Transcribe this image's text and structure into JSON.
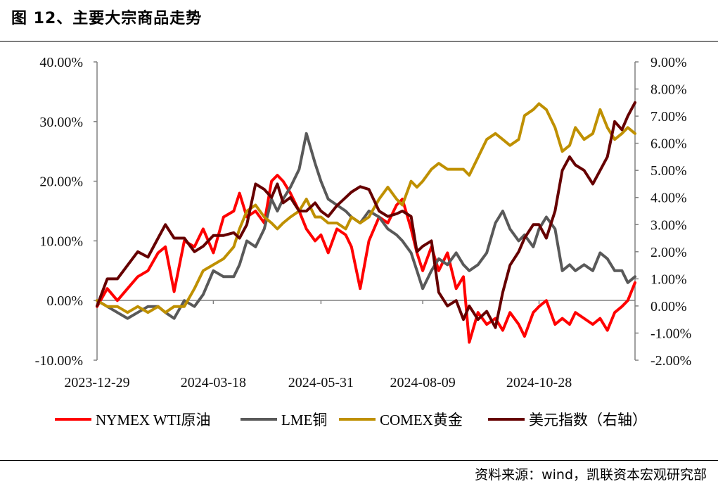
{
  "figure_title": "图 12、主要大宗商品走势",
  "source_note": "资料来源：wind，凯联资本宏观研究部",
  "chart_data": {
    "type": "line",
    "x_ticks": [
      "2023-12-29",
      "2024-03-18",
      "2024-05-31",
      "2024-08-09",
      "2024-10-28"
    ],
    "x_range": [
      "2023-12-29",
      "2025-01-02"
    ],
    "left_axis": {
      "ylim": [
        -10,
        40
      ],
      "tick_values": [
        -10,
        0,
        10,
        20,
        30,
        40
      ],
      "tick_labels": [
        "-10.00%",
        "0.00%",
        "10.00%",
        "20.00%",
        "30.00%",
        "40.00%"
      ]
    },
    "right_axis": {
      "ylim": [
        -2,
        9
      ],
      "tick_values": [
        -2,
        -1,
        0,
        1,
        2,
        3,
        4,
        5,
        6,
        7,
        8,
        9
      ],
      "tick_labels": [
        "-2.00%",
        "-1.00%",
        "0.00%",
        "1.00%",
        "2.00%",
        "3.00%",
        "4.00%",
        "5.00%",
        "6.00%",
        "7.00%",
        "8.00%",
        "9.00%"
      ]
    },
    "series": [
      {
        "name": "NYMEX WTI原油",
        "axis": "left",
        "color": "#ff0000",
        "points": [
          [
            "2023-12-29",
            -1
          ],
          [
            "2024-01-05",
            2
          ],
          [
            "2024-01-12",
            0
          ],
          [
            "2024-01-19",
            2
          ],
          [
            "2024-01-26",
            4
          ],
          [
            "2024-02-02",
            5
          ],
          [
            "2024-02-09",
            8
          ],
          [
            "2024-02-14",
            9
          ],
          [
            "2024-02-20",
            1.5
          ],
          [
            "2024-02-27",
            10
          ],
          [
            "2024-03-05",
            9
          ],
          [
            "2024-03-11",
            12
          ],
          [
            "2024-03-18",
            8
          ],
          [
            "2024-03-25",
            14
          ],
          [
            "2024-04-01",
            15
          ],
          [
            "2024-04-05",
            18
          ],
          [
            "2024-04-10",
            14
          ],
          [
            "2024-04-16",
            15
          ],
          [
            "2024-04-22",
            13
          ],
          [
            "2024-04-27",
            20
          ],
          [
            "2024-05-01",
            21
          ],
          [
            "2024-05-05",
            20
          ],
          [
            "2024-05-10",
            18
          ],
          [
            "2024-05-16",
            15
          ],
          [
            "2024-05-21",
            12
          ],
          [
            "2024-05-27",
            10
          ],
          [
            "2024-05-31",
            11
          ],
          [
            "2024-06-05",
            8
          ],
          [
            "2024-06-11",
            12
          ],
          [
            "2024-06-17",
            11
          ],
          [
            "2024-06-21",
            9
          ],
          [
            "2024-06-27",
            2
          ],
          [
            "2024-07-03",
            10
          ],
          [
            "2024-07-10",
            14
          ],
          [
            "2024-07-16",
            13
          ],
          [
            "2024-07-22",
            16
          ],
          [
            "2024-07-26",
            17
          ],
          [
            "2024-08-01",
            12
          ],
          [
            "2024-08-05",
            8
          ],
          [
            "2024-08-09",
            5
          ],
          [
            "2024-08-15",
            9
          ],
          [
            "2024-08-20",
            5
          ],
          [
            "2024-08-26",
            8
          ],
          [
            "2024-09-01",
            2
          ],
          [
            "2024-09-06",
            4
          ],
          [
            "2024-09-10",
            -7
          ],
          [
            "2024-09-16",
            -2
          ],
          [
            "2024-09-22",
            -4
          ],
          [
            "2024-09-28",
            -3
          ],
          [
            "2024-10-03",
            -5
          ],
          [
            "2024-10-08",
            -2
          ],
          [
            "2024-10-14",
            -4
          ],
          [
            "2024-10-18",
            -6
          ],
          [
            "2024-10-24",
            -2
          ],
          [
            "2024-10-28",
            -1
          ],
          [
            "2024-11-02",
            0
          ],
          [
            "2024-11-08",
            -4
          ],
          [
            "2024-11-13",
            -3
          ],
          [
            "2024-11-18",
            -4
          ],
          [
            "2024-11-22",
            -2
          ],
          [
            "2024-11-28",
            -3
          ],
          [
            "2024-12-04",
            -4
          ],
          [
            "2024-12-09",
            -3
          ],
          [
            "2024-12-14",
            -5
          ],
          [
            "2024-12-19",
            -2
          ],
          [
            "2024-12-24",
            -1
          ],
          [
            "2024-12-28",
            0
          ],
          [
            "2025-01-02",
            3
          ]
        ]
      },
      {
        "name": "LME铜",
        "axis": "left",
        "color": "#595959",
        "points": [
          [
            "2023-12-29",
            0
          ],
          [
            "2024-01-05",
            -1
          ],
          [
            "2024-01-12",
            -2
          ],
          [
            "2024-01-19",
            -3
          ],
          [
            "2024-01-26",
            -2
          ],
          [
            "2024-02-02",
            -1
          ],
          [
            "2024-02-09",
            -1
          ],
          [
            "2024-02-14",
            -2
          ],
          [
            "2024-02-20",
            -3
          ],
          [
            "2024-02-27",
            0
          ],
          [
            "2024-03-05",
            -1
          ],
          [
            "2024-03-11",
            1
          ],
          [
            "2024-03-18",
            5
          ],
          [
            "2024-03-25",
            4
          ],
          [
            "2024-04-01",
            4
          ],
          [
            "2024-04-05",
            6
          ],
          [
            "2024-04-10",
            10
          ],
          [
            "2024-04-16",
            9
          ],
          [
            "2024-04-22",
            12
          ],
          [
            "2024-04-27",
            17
          ],
          [
            "2024-05-01",
            15
          ],
          [
            "2024-05-05",
            17
          ],
          [
            "2024-05-10",
            19
          ],
          [
            "2024-05-16",
            22
          ],
          [
            "2024-05-21",
            28
          ],
          [
            "2024-05-27",
            23
          ],
          [
            "2024-05-31",
            20
          ],
          [
            "2024-06-05",
            17
          ],
          [
            "2024-06-11",
            16
          ],
          [
            "2024-06-17",
            15
          ],
          [
            "2024-06-21",
            14
          ],
          [
            "2024-06-27",
            13
          ],
          [
            "2024-07-03",
            15
          ],
          [
            "2024-07-10",
            14
          ],
          [
            "2024-07-16",
            12
          ],
          [
            "2024-07-22",
            11
          ],
          [
            "2024-07-26",
            10
          ],
          [
            "2024-08-01",
            8
          ],
          [
            "2024-08-05",
            5
          ],
          [
            "2024-08-09",
            2
          ],
          [
            "2024-08-15",
            5
          ],
          [
            "2024-08-20",
            7
          ],
          [
            "2024-08-26",
            6
          ],
          [
            "2024-09-01",
            8
          ],
          [
            "2024-09-06",
            6
          ],
          [
            "2024-09-10",
            5
          ],
          [
            "2024-09-16",
            6
          ],
          [
            "2024-09-22",
            8
          ],
          [
            "2024-09-28",
            13
          ],
          [
            "2024-10-03",
            15
          ],
          [
            "2024-10-08",
            12
          ],
          [
            "2024-10-14",
            10
          ],
          [
            "2024-10-18",
            11
          ],
          [
            "2024-10-24",
            9
          ],
          [
            "2024-10-28",
            12
          ],
          [
            "2024-11-02",
            14
          ],
          [
            "2024-11-08",
            12
          ],
          [
            "2024-11-13",
            5
          ],
          [
            "2024-11-18",
            6
          ],
          [
            "2024-11-22",
            5
          ],
          [
            "2024-11-28",
            6
          ],
          [
            "2024-12-04",
            5
          ],
          [
            "2024-12-09",
            8
          ],
          [
            "2024-12-14",
            7
          ],
          [
            "2024-12-19",
            5
          ],
          [
            "2024-12-24",
            5
          ],
          [
            "2024-12-28",
            3
          ],
          [
            "2025-01-02",
            4
          ]
        ]
      },
      {
        "name": "COMEX黄金",
        "axis": "left",
        "color": "#bf9000",
        "points": [
          [
            "2023-12-29",
            0
          ],
          [
            "2024-01-05",
            -1
          ],
          [
            "2024-01-12",
            -1
          ],
          [
            "2024-01-19",
            -2
          ],
          [
            "2024-01-26",
            -1
          ],
          [
            "2024-02-02",
            -2
          ],
          [
            "2024-02-09",
            -1
          ],
          [
            "2024-02-14",
            -2
          ],
          [
            "2024-02-20",
            -1
          ],
          [
            "2024-02-27",
            -1
          ],
          [
            "2024-03-05",
            2
          ],
          [
            "2024-03-11",
            5
          ],
          [
            "2024-03-18",
            6
          ],
          [
            "2024-03-25",
            7
          ],
          [
            "2024-04-01",
            9
          ],
          [
            "2024-04-05",
            12
          ],
          [
            "2024-04-10",
            15
          ],
          [
            "2024-04-16",
            16
          ],
          [
            "2024-04-22",
            14
          ],
          [
            "2024-04-27",
            13
          ],
          [
            "2024-05-01",
            12
          ],
          [
            "2024-05-05",
            13
          ],
          [
            "2024-05-10",
            14
          ],
          [
            "2024-05-16",
            15
          ],
          [
            "2024-05-21",
            17
          ],
          [
            "2024-05-27",
            14
          ],
          [
            "2024-05-31",
            14
          ],
          [
            "2024-06-05",
            13
          ],
          [
            "2024-06-11",
            13
          ],
          [
            "2024-06-17",
            12
          ],
          [
            "2024-06-21",
            14
          ],
          [
            "2024-06-27",
            13
          ],
          [
            "2024-07-03",
            14
          ],
          [
            "2024-07-10",
            17
          ],
          [
            "2024-07-16",
            19
          ],
          [
            "2024-07-22",
            17
          ],
          [
            "2024-07-26",
            16
          ],
          [
            "2024-08-01",
            20
          ],
          [
            "2024-08-05",
            19
          ],
          [
            "2024-08-09",
            20
          ],
          [
            "2024-08-15",
            22
          ],
          [
            "2024-08-20",
            23
          ],
          [
            "2024-08-26",
            22
          ],
          [
            "2024-09-01",
            22
          ],
          [
            "2024-09-06",
            22
          ],
          [
            "2024-09-10",
            21
          ],
          [
            "2024-09-16",
            24
          ],
          [
            "2024-09-22",
            27
          ],
          [
            "2024-09-28",
            28
          ],
          [
            "2024-10-03",
            27
          ],
          [
            "2024-10-08",
            26
          ],
          [
            "2024-10-14",
            27
          ],
          [
            "2024-10-18",
            31
          ],
          [
            "2024-10-24",
            32
          ],
          [
            "2024-10-28",
            33
          ],
          [
            "2024-11-02",
            32
          ],
          [
            "2024-11-08",
            29
          ],
          [
            "2024-11-13",
            25
          ],
          [
            "2024-11-18",
            26
          ],
          [
            "2024-11-22",
            29
          ],
          [
            "2024-11-28",
            27
          ],
          [
            "2024-12-04",
            28
          ],
          [
            "2024-12-09",
            32
          ],
          [
            "2024-12-14",
            29
          ],
          [
            "2024-12-19",
            27
          ],
          [
            "2024-12-24",
            28
          ],
          [
            "2024-12-28",
            29
          ],
          [
            "2025-01-02",
            28
          ]
        ]
      },
      {
        "name": "美元指数（右轴）",
        "axis": "right",
        "color": "#660000",
        "points": [
          [
            "2023-12-29",
            0
          ],
          [
            "2024-01-05",
            1
          ],
          [
            "2024-01-12",
            1
          ],
          [
            "2024-01-19",
            1.5
          ],
          [
            "2024-01-26",
            2
          ],
          [
            "2024-02-02",
            1.8
          ],
          [
            "2024-02-09",
            2.5
          ],
          [
            "2024-02-14",
            3
          ],
          [
            "2024-02-20",
            2.5
          ],
          [
            "2024-02-27",
            2.5
          ],
          [
            "2024-03-05",
            2
          ],
          [
            "2024-03-11",
            2.2
          ],
          [
            "2024-03-18",
            2.6
          ],
          [
            "2024-03-25",
            2.6
          ],
          [
            "2024-04-01",
            2.7
          ],
          [
            "2024-04-05",
            2.5
          ],
          [
            "2024-04-10",
            3
          ],
          [
            "2024-04-16",
            4.5
          ],
          [
            "2024-04-22",
            4.3
          ],
          [
            "2024-04-27",
            4
          ],
          [
            "2024-05-01",
            4.5
          ],
          [
            "2024-05-05",
            3.8
          ],
          [
            "2024-05-10",
            4
          ],
          [
            "2024-05-16",
            3.5
          ],
          [
            "2024-05-21",
            3.5
          ],
          [
            "2024-05-27",
            3.8
          ],
          [
            "2024-05-31",
            3.5
          ],
          [
            "2024-06-05",
            3.3
          ],
          [
            "2024-06-11",
            3.7
          ],
          [
            "2024-06-17",
            4
          ],
          [
            "2024-06-21",
            4.2
          ],
          [
            "2024-06-27",
            4.4
          ],
          [
            "2024-07-03",
            4.3
          ],
          [
            "2024-07-10",
            3.5
          ],
          [
            "2024-07-16",
            3.3
          ],
          [
            "2024-07-22",
            3.4
          ],
          [
            "2024-07-26",
            3.5
          ],
          [
            "2024-08-01",
            3.3
          ],
          [
            "2024-08-05",
            2
          ],
          [
            "2024-08-09",
            2.2
          ],
          [
            "2024-08-15",
            2.4
          ],
          [
            "2024-08-20",
            0.5
          ],
          [
            "2024-08-26",
            0
          ],
          [
            "2024-09-01",
            0.2
          ],
          [
            "2024-09-06",
            -0.5
          ],
          [
            "2024-09-10",
            0
          ],
          [
            "2024-09-16",
            -0.5
          ],
          [
            "2024-09-22",
            -0.2
          ],
          [
            "2024-09-28",
            -0.8
          ],
          [
            "2024-10-03",
            0.5
          ],
          [
            "2024-10-08",
            1.5
          ],
          [
            "2024-10-14",
            2
          ],
          [
            "2024-10-18",
            2.5
          ],
          [
            "2024-10-24",
            3
          ],
          [
            "2024-10-28",
            3
          ],
          [
            "2024-11-02",
            2.5
          ],
          [
            "2024-11-08",
            3.5
          ],
          [
            "2024-11-13",
            5
          ],
          [
            "2024-11-18",
            5.5
          ],
          [
            "2024-11-22",
            5.2
          ],
          [
            "2024-11-28",
            5
          ],
          [
            "2024-12-04",
            4.5
          ],
          [
            "2024-12-09",
            5
          ],
          [
            "2024-12-14",
            5.5
          ],
          [
            "2024-12-19",
            6.8
          ],
          [
            "2024-12-24",
            6.5
          ],
          [
            "2024-12-28",
            7
          ],
          [
            "2025-01-02",
            7.5
          ]
        ]
      }
    ]
  }
}
